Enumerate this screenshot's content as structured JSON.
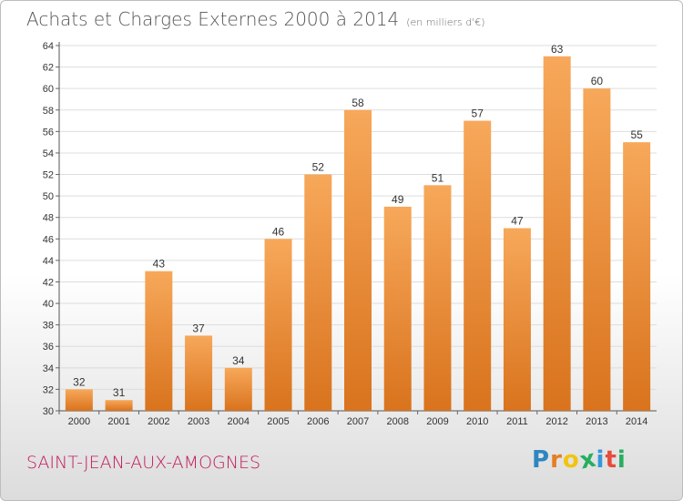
{
  "header": {
    "title": "Achats et Charges Externes 2000 à 2014",
    "subtitle": "(en milliers d'€)"
  },
  "footer": {
    "place_name": "SAINT-JEAN-AUX-AMOGNES",
    "logo_letters": [
      "P",
      "r",
      "o",
      "x",
      "i",
      "t",
      "i"
    ]
  },
  "colors": {
    "bar_top": "#f7a85a",
    "bar_bottom": "#d9731d",
    "place_name": "#c2185b",
    "logo": [
      "#2e86c1",
      "#e67e22",
      "#f1c40f",
      "#27ae60",
      "#3498db",
      "#e74c3c",
      "#27ae60"
    ]
  },
  "chart_data": {
    "type": "bar",
    "categories": [
      "2000",
      "2001",
      "2002",
      "2003",
      "2004",
      "2005",
      "2006",
      "2007",
      "2008",
      "2009",
      "2010",
      "2011",
      "2012",
      "2013",
      "2014"
    ],
    "values": [
      32,
      31,
      43,
      37,
      34,
      46,
      52,
      58,
      49,
      51,
      57,
      47,
      63,
      60,
      55
    ],
    "ylim": [
      30,
      64
    ],
    "yticks": [
      30,
      32,
      34,
      36,
      38,
      40,
      42,
      44,
      46,
      48,
      50,
      52,
      54,
      56,
      58,
      60,
      62,
      64
    ],
    "grid": true,
    "data_labels": true
  }
}
